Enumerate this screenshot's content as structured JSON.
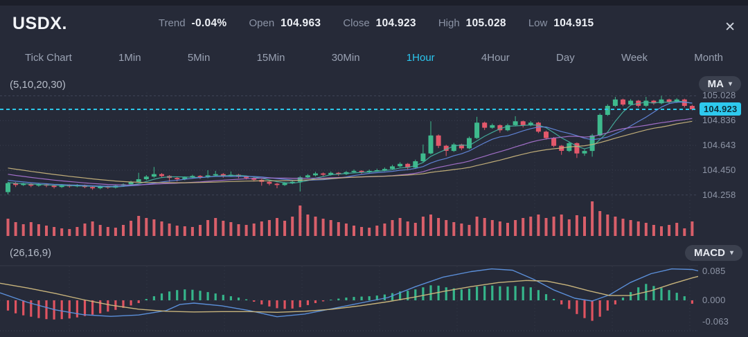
{
  "header": {
    "symbol": "USDX.",
    "stats": [
      {
        "label": "Trend",
        "value": "-0.04%"
      },
      {
        "label": "Open",
        "value": "104.963"
      },
      {
        "label": "Close",
        "value": "104.923"
      },
      {
        "label": "High",
        "value": "105.028"
      },
      {
        "label": "Low",
        "value": "104.915"
      }
    ],
    "close_icon": "✕"
  },
  "tabs": {
    "items": [
      "Tick Chart",
      "1Min",
      "5Min",
      "15Min",
      "30Min",
      "1Hour",
      "4Hour",
      "Day",
      "Week",
      "Month"
    ],
    "active": "1Hour",
    "active_color": "#2bc6ee"
  },
  "main_panel": {
    "indicator_label": "(5,10,20,30)",
    "ma_button": "MA",
    "dropdown_icon": "▾",
    "price_axis_labels": [
      "105.028",
      "104.836",
      "104.643",
      "104.450",
      "104.258"
    ],
    "current_price_label": "104.923"
  },
  "macd_panel": {
    "indicator_label": "(26,16,9)",
    "macd_button": "MACD",
    "dropdown_icon": "▾",
    "axis_labels": [
      "0.085",
      "0.000",
      "-0.063"
    ]
  },
  "chart_data": {
    "type": "candlestick",
    "symbol": "USDX",
    "interval": "1Hour",
    "title": "USDX 1Hour candlestick with MA(5,10,20,30), volume and MACD(26,16,9)",
    "price_gridlines": [
      105.028,
      104.836,
      104.643,
      104.45,
      104.258
    ],
    "current_price": 104.923,
    "colors": {
      "up": "#3eba8d",
      "down": "#e4586b",
      "volume": "#d95f6a",
      "current_line": "#2cc9ea",
      "grid": "rgba(150,160,185,0.28)"
    },
    "ma_periods": [
      5,
      10,
      20,
      30
    ],
    "ma_colors": [
      "#45b09e",
      "#6287dc",
      "#a873cf",
      "#c8b47c"
    ],
    "pre_closes": [
      104.62,
      104.61,
      104.6,
      104.59,
      104.58,
      104.57,
      104.56,
      104.55,
      104.54,
      104.53,
      104.52,
      104.51,
      104.5,
      104.49,
      104.48,
      104.47,
      104.46,
      104.45,
      104.44,
      104.43,
      104.42,
      104.41,
      104.4,
      104.39,
      104.38,
      104.37,
      104.36,
      104.36,
      104.35,
      104.35
    ],
    "ohlc": [
      [
        104.28,
        104.36,
        104.262,
        104.35
      ],
      [
        104.35,
        104.358,
        104.32,
        104.335
      ],
      [
        104.335,
        104.352,
        104.328,
        104.345
      ],
      [
        104.345,
        104.35,
        104.318,
        104.33
      ],
      [
        104.33,
        104.348,
        104.322,
        104.34
      ],
      [
        104.34,
        104.346,
        104.318,
        104.33
      ],
      [
        104.33,
        104.338,
        104.308,
        104.32
      ],
      [
        104.32,
        104.342,
        104.312,
        104.335
      ],
      [
        104.335,
        104.34,
        104.315,
        104.325
      ],
      [
        104.325,
        104.342,
        104.318,
        104.335
      ],
      [
        104.335,
        104.338,
        104.31,
        104.32
      ],
      [
        104.32,
        104.328,
        104.298,
        104.31
      ],
      [
        104.31,
        104.332,
        104.302,
        104.325
      ],
      [
        104.325,
        104.33,
        104.305,
        104.315
      ],
      [
        104.315,
        104.338,
        104.308,
        104.33
      ],
      [
        104.33,
        104.348,
        104.322,
        104.34
      ],
      [
        104.34,
        104.368,
        104.332,
        104.36
      ],
      [
        104.36,
        104.43,
        104.352,
        104.38
      ],
      [
        104.38,
        104.412,
        104.372,
        104.4
      ],
      [
        104.4,
        104.475,
        104.392,
        104.42
      ],
      [
        104.42,
        104.428,
        104.392,
        104.405
      ],
      [
        104.405,
        104.412,
        104.36,
        104.39
      ],
      [
        104.39,
        104.398,
        104.362,
        104.38
      ],
      [
        104.38,
        104.402,
        104.372,
        104.395
      ],
      [
        104.395,
        104.415,
        104.386,
        104.405
      ],
      [
        104.405,
        104.412,
        104.382,
        104.395
      ],
      [
        104.395,
        104.45,
        104.388,
        104.41
      ],
      [
        104.41,
        104.445,
        104.4,
        104.42
      ],
      [
        104.42,
        104.428,
        104.392,
        104.405
      ],
      [
        104.405,
        104.44,
        104.398,
        104.415
      ],
      [
        104.415,
        104.422,
        104.388,
        104.4
      ],
      [
        104.4,
        104.408,
        104.378,
        104.39
      ],
      [
        104.39,
        104.396,
        104.362,
        104.375
      ],
      [
        104.375,
        104.382,
        104.33,
        104.36
      ],
      [
        104.36,
        104.366,
        104.332,
        104.345
      ],
      [
        104.345,
        104.352,
        104.31,
        104.335
      ],
      [
        104.335,
        104.358,
        104.328,
        104.35
      ],
      [
        104.35,
        104.372,
        104.342,
        104.36
      ],
      [
        104.36,
        104.405,
        104.285,
        104.395
      ],
      [
        104.395,
        104.42,
        104.388,
        104.41
      ],
      [
        104.41,
        104.438,
        104.402,
        104.425
      ],
      [
        104.425,
        104.432,
        104.402,
        104.415
      ],
      [
        104.415,
        104.44,
        104.408,
        104.43
      ],
      [
        104.43,
        104.436,
        104.405,
        104.42
      ],
      [
        104.42,
        104.444,
        104.412,
        104.435
      ],
      [
        104.435,
        104.456,
        104.428,
        104.445
      ],
      [
        104.445,
        104.45,
        104.422,
        104.435
      ],
      [
        104.435,
        104.455,
        104.428,
        104.445
      ],
      [
        104.445,
        104.462,
        104.438,
        104.45
      ],
      [
        104.45,
        104.472,
        104.442,
        104.46
      ],
      [
        104.46,
        104.492,
        104.452,
        104.48
      ],
      [
        104.48,
        104.512,
        104.472,
        104.5
      ],
      [
        104.5,
        104.506,
        104.458,
        104.47
      ],
      [
        104.47,
        104.532,
        104.462,
        104.52
      ],
      [
        104.52,
        104.65,
        104.512,
        104.58
      ],
      [
        104.58,
        104.83,
        104.572,
        104.72
      ],
      [
        104.72,
        104.728,
        104.622,
        104.64
      ],
      [
        104.64,
        104.648,
        104.56,
        104.6
      ],
      [
        104.6,
        104.662,
        104.592,
        104.65
      ],
      [
        104.65,
        104.656,
        104.605,
        104.62
      ],
      [
        104.62,
        104.712,
        104.612,
        104.7
      ],
      [
        104.7,
        104.865,
        104.692,
        104.82
      ],
      [
        104.82,
        104.828,
        104.762,
        104.78
      ],
      [
        104.78,
        104.812,
        104.772,
        104.8
      ],
      [
        104.8,
        104.806,
        104.742,
        104.76
      ],
      [
        104.76,
        104.812,
        104.752,
        104.8
      ],
      [
        104.8,
        104.87,
        104.792,
        104.83
      ],
      [
        104.83,
        104.836,
        104.782,
        104.8
      ],
      [
        104.8,
        104.832,
        104.792,
        104.82
      ],
      [
        104.82,
        104.826,
        104.738,
        104.75
      ],
      [
        104.75,
        104.758,
        104.688,
        104.7
      ],
      [
        104.7,
        104.708,
        104.628,
        104.64
      ],
      [
        104.64,
        104.646,
        104.57,
        104.6
      ],
      [
        104.6,
        104.672,
        104.592,
        104.66
      ],
      [
        104.66,
        104.666,
        104.545,
        104.58
      ],
      [
        104.58,
        104.612,
        104.562,
        104.6
      ],
      [
        104.6,
        104.732,
        104.555,
        104.72
      ],
      [
        104.72,
        104.892,
        104.712,
        104.88
      ],
      [
        104.88,
        104.962,
        104.872,
        104.95
      ],
      [
        104.95,
        105.02,
        104.942,
        105.0
      ],
      [
        105.0,
        105.006,
        104.948,
        104.96
      ],
      [
        104.96,
        105.002,
        104.952,
        104.99
      ],
      [
        104.99,
        104.996,
        104.938,
        104.95
      ],
      [
        104.95,
        105.02,
        104.942,
        104.99
      ],
      [
        104.99,
        104.996,
        104.958,
        104.97
      ],
      [
        104.97,
        105.028,
        104.962,
        105.0
      ],
      [
        105.0,
        105.006,
        104.968,
        104.98
      ],
      [
        104.98,
        105.01,
        104.972,
        105.0
      ],
      [
        105.0,
        105.006,
        104.938,
        104.95
      ],
      [
        104.95,
        104.958,
        104.915,
        104.923
      ]
    ],
    "volume_rel": [
      0.5,
      0.4,
      0.34,
      0.4,
      0.34,
      0.3,
      0.26,
      0.22,
      0.2,
      0.26,
      0.36,
      0.42,
      0.32,
      0.26,
      0.24,
      0.32,
      0.44,
      0.58,
      0.52,
      0.48,
      0.42,
      0.36,
      0.3,
      0.28,
      0.26,
      0.32,
      0.46,
      0.52,
      0.44,
      0.4,
      0.34,
      0.32,
      0.36,
      0.42,
      0.46,
      0.52,
      0.44,
      0.56,
      0.88,
      0.62,
      0.56,
      0.5,
      0.46,
      0.4,
      0.36,
      0.3,
      0.26,
      0.24,
      0.3,
      0.36,
      0.46,
      0.52,
      0.42,
      0.38,
      0.56,
      0.62,
      0.52,
      0.46,
      0.4,
      0.36,
      0.32,
      0.56,
      0.52,
      0.46,
      0.42,
      0.38,
      0.46,
      0.52,
      0.56,
      0.62,
      0.52,
      0.56,
      0.62,
      0.48,
      0.6,
      0.56,
      1.0,
      0.72,
      0.62,
      0.56,
      0.5,
      0.46,
      0.42,
      0.38,
      0.32,
      0.28,
      0.32,
      0.38,
      0.22,
      0.42
    ],
    "macd": {
      "params": [
        26,
        16,
        9
      ],
      "axis_values": [
        0.085,
        0.0,
        -0.063
      ],
      "histogram": [
        -0.03,
        -0.038,
        -0.044,
        -0.048,
        -0.052,
        -0.055,
        -0.056,
        -0.055,
        -0.053,
        -0.05,
        -0.046,
        -0.042,
        -0.038,
        -0.033,
        -0.028,
        -0.022,
        -0.015,
        -0.008,
        0.004,
        0.012,
        0.02,
        0.026,
        0.03,
        0.032,
        0.031,
        0.028,
        0.024,
        0.02,
        0.016,
        0.012,
        0.008,
        0.003,
        -0.004,
        -0.012,
        -0.018,
        -0.023,
        -0.025,
        -0.024,
        -0.02,
        -0.014,
        -0.008,
        -0.003,
        0.002,
        0.005,
        0.008,
        0.01,
        0.011,
        0.012,
        0.014,
        0.017,
        0.021,
        0.026,
        0.028,
        0.032,
        0.038,
        0.044,
        0.043,
        0.038,
        0.035,
        0.032,
        0.034,
        0.04,
        0.042,
        0.043,
        0.041,
        0.04,
        0.042,
        0.04,
        0.038,
        0.03,
        0.018,
        0.004,
        -0.012,
        -0.025,
        -0.04,
        -0.052,
        -0.06,
        -0.048,
        -0.03,
        -0.012,
        0.008,
        0.024,
        0.038,
        0.048,
        0.042,
        0.036,
        0.03,
        0.022,
        0.012,
        -0.01
      ],
      "macd_line": {
        "color": "#5b8fd9",
        "points": [
          [
            0,
            0.022
          ],
          [
            40,
            -0.006
          ],
          [
            80,
            -0.028
          ],
          [
            120,
            -0.042
          ],
          [
            160,
            -0.047
          ],
          [
            200,
            -0.043
          ],
          [
            240,
            -0.03
          ],
          [
            260,
            -0.012
          ],
          [
            280,
            -0.008
          ],
          [
            320,
            -0.016
          ],
          [
            360,
            -0.03
          ],
          [
            400,
            -0.048
          ],
          [
            440,
            -0.04
          ],
          [
            480,
            -0.024
          ],
          [
            520,
            -0.008
          ],
          [
            560,
            0.008
          ],
          [
            600,
            0.04
          ],
          [
            640,
            0.068
          ],
          [
            680,
            0.084
          ],
          [
            710,
            0.092
          ],
          [
            740,
            0.088
          ],
          [
            770,
            0.062
          ],
          [
            800,
            0.03
          ],
          [
            830,
            0.006
          ],
          [
            855,
            -0.002
          ],
          [
            880,
            0.016
          ],
          [
            910,
            0.052
          ],
          [
            940,
            0.078
          ],
          [
            970,
            0.092
          ],
          [
            1000,
            0.09
          ],
          [
            1008,
            0.086
          ]
        ]
      },
      "signal_line": {
        "color": "#c8b47c",
        "points": [
          [
            0,
            0.05
          ],
          [
            40,
            0.036
          ],
          [
            80,
            0.02
          ],
          [
            120,
            0.002
          ],
          [
            160,
            -0.014
          ],
          [
            200,
            -0.026
          ],
          [
            240,
            -0.032
          ],
          [
            280,
            -0.034
          ],
          [
            320,
            -0.033
          ],
          [
            360,
            -0.033
          ],
          [
            400,
            -0.035
          ],
          [
            440,
            -0.032
          ],
          [
            480,
            -0.026
          ],
          [
            520,
            -0.016
          ],
          [
            560,
            -0.004
          ],
          [
            600,
            0.01
          ],
          [
            640,
            0.026
          ],
          [
            680,
            0.04
          ],
          [
            720,
            0.052
          ],
          [
            760,
            0.058
          ],
          [
            790,
            0.056
          ],
          [
            820,
            0.044
          ],
          [
            850,
            0.028
          ],
          [
            880,
            0.014
          ],
          [
            910,
            0.014
          ],
          [
            940,
            0.028
          ],
          [
            970,
            0.048
          ],
          [
            1000,
            0.066
          ],
          [
            1008,
            0.07
          ]
        ]
      }
    }
  }
}
